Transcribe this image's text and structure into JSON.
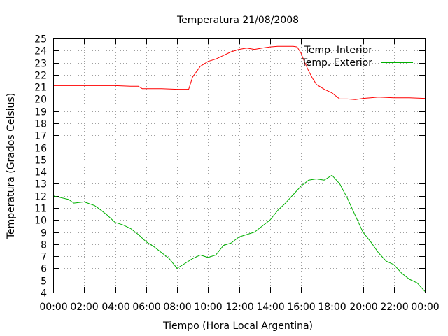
{
  "chart_data": {
    "type": "line",
    "title": "Temperatura 21/08/2008",
    "xlabel": "Tiempo (Hora Local Argentina)",
    "ylabel": "Temperatura (Grados Celsius)",
    "xlim": [
      0,
      24
    ],
    "ylim": [
      4,
      25
    ],
    "x_ticks": [
      "00:00",
      "02:00",
      "04:00",
      "06:00",
      "08:00",
      "10:00",
      "12:00",
      "14:00",
      "16:00",
      "18:00",
      "20:00",
      "22:00",
      "00:00"
    ],
    "y_ticks": [
      "4",
      "5",
      "6",
      "7",
      "8",
      "9",
      "10",
      "11",
      "12",
      "13",
      "14",
      "15",
      "16",
      "17",
      "18",
      "19",
      "20",
      "21",
      "22",
      "23",
      "24",
      "25"
    ],
    "grid": true,
    "legend_position": "top-right",
    "series": [
      {
        "name": "Temp. Interior",
        "color": "#ff0000",
        "x": [
          "00:00",
          "01:00",
          "02:00",
          "03:00",
          "04:00",
          "05:00",
          "05:30",
          "05:45",
          "06:00",
          "07:00",
          "08:00",
          "08:30",
          "08:45",
          "09:00",
          "09:30",
          "10:00",
          "10:30",
          "11:00",
          "11:30",
          "12:00",
          "12:30",
          "13:00",
          "13:30",
          "14:00",
          "14:30",
          "15:00",
          "15:30",
          "15:45",
          "16:00",
          "16:15",
          "16:30",
          "16:45",
          "17:00",
          "17:30",
          "18:00",
          "18:30",
          "19:00",
          "19:30",
          "20:00",
          "20:30",
          "21:00",
          "22:00",
          "23:00",
          "24:00"
        ],
        "values": [
          21.1,
          21.1,
          21.1,
          21.1,
          21.1,
          21.05,
          21.05,
          20.85,
          20.85,
          20.85,
          20.8,
          20.8,
          20.8,
          21.8,
          22.7,
          23.1,
          23.3,
          23.6,
          23.9,
          24.1,
          24.2,
          24.1,
          24.2,
          24.3,
          24.35,
          24.35,
          24.35,
          24.3,
          23.8,
          23.0,
          22.3,
          21.7,
          21.2,
          20.8,
          20.5,
          20.0,
          20.0,
          19.95,
          20.05,
          20.1,
          20.15,
          20.1,
          20.1,
          20.05
        ]
      },
      {
        "name": "Temp. Exterior",
        "color": "#00b000",
        "x": [
          "00:00",
          "01:00",
          "01:20",
          "02:00",
          "02:40",
          "03:00",
          "03:30",
          "04:00",
          "04:30",
          "05:00",
          "05:30",
          "06:00",
          "06:30",
          "07:00",
          "07:30",
          "08:00",
          "08:30",
          "09:00",
          "09:30",
          "10:00",
          "10:30",
          "11:00",
          "11:30",
          "12:00",
          "12:30",
          "13:00",
          "13:30",
          "14:00",
          "14:30",
          "15:00",
          "15:30",
          "16:00",
          "16:30",
          "17:00",
          "17:30",
          "18:00",
          "18:30",
          "19:00",
          "19:30",
          "20:00",
          "20:30",
          "21:00",
          "21:30",
          "22:00",
          "22:30",
          "23:00",
          "23:30",
          "24:00"
        ],
        "values": [
          12.0,
          11.7,
          11.4,
          11.5,
          11.2,
          10.9,
          10.4,
          9.8,
          9.6,
          9.3,
          8.8,
          8.2,
          7.8,
          7.3,
          6.8,
          6.0,
          6.4,
          6.8,
          7.1,
          6.9,
          7.1,
          7.9,
          8.1,
          8.6,
          8.8,
          9.0,
          9.5,
          10.0,
          10.8,
          11.4,
          12.1,
          12.8,
          13.3,
          13.4,
          13.3,
          13.7,
          13.0,
          11.8,
          10.4,
          9.0,
          8.2,
          7.3,
          6.6,
          6.3,
          5.6,
          5.1,
          4.8,
          4.1
        ]
      }
    ]
  }
}
